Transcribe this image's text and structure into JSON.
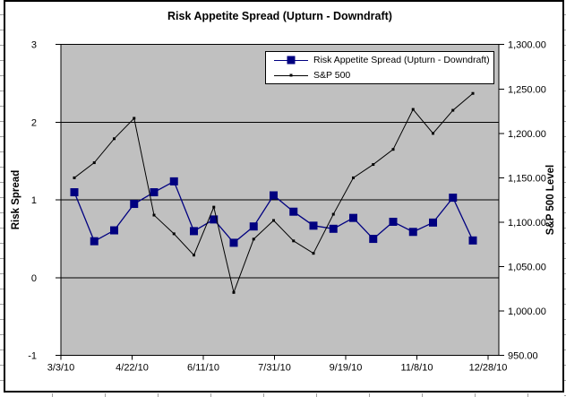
{
  "colors": {
    "plot_background": "#c0c0c0",
    "series1": "#000080",
    "series2": "#000000",
    "chart_border": "#000000",
    "gridline": "#000000"
  },
  "chart": {
    "title": "Risk Appetite Spread (Upturn - Downdraft)"
  },
  "legend": {
    "items": [
      {
        "label": "Risk Appetite Spread (Upturn - Downdraft)",
        "marker": "square",
        "color": "#000080"
      },
      {
        "label": "S&P 500",
        "marker": "dot",
        "color": "#000000"
      }
    ]
  },
  "chart_data": {
    "type": "line",
    "title": "Risk Appetite Spread (Upturn - Downdraft)",
    "x_tick_labels": [
      "3/3/10",
      "4/22/10",
      "6/11/10",
      "7/31/10",
      "9/19/10",
      "11/8/10",
      "12/28/10"
    ],
    "left_axis": {
      "label": "Risk Spread",
      "range": [
        -1,
        3
      ],
      "tick_values": [
        3,
        2,
        1,
        0,
        -1
      ],
      "tick_labels": [
        "3",
        "2",
        "1",
        "0",
        "-1"
      ]
    },
    "right_axis": {
      "label": "S&P 500 Level",
      "range": [
        950,
        1300
      ],
      "tick_values": [
        1300,
        1250,
        1200,
        1150,
        1100,
        1050,
        1000,
        950
      ],
      "tick_labels": [
        "1,300.00",
        "1,250.00",
        "1,200.00",
        "1,150.00",
        "1,100.00",
        "1,050.00",
        "1,000.00",
        "950.00"
      ]
    },
    "gridline_values": [
      2,
      1,
      0
    ],
    "legend_position": "top-right-inside",
    "grid": true,
    "series": [
      {
        "name": "Risk Appetite Spread (Upturn - Downdraft)",
        "axis": "left",
        "marker": "square",
        "color": "#000080",
        "values": [
          1.1,
          0.47,
          0.61,
          0.95,
          1.1,
          1.24,
          0.6,
          0.75,
          0.45,
          0.66,
          1.06,
          0.85,
          0.67,
          0.63,
          0.77,
          0.5,
          0.72,
          0.59,
          0.71,
          1.03,
          0.48
        ]
      },
      {
        "name": "S&P 500",
        "axis": "right",
        "marker": "dot",
        "color": "#000000",
        "values": [
          1150,
          1167,
          1194,
          1217,
          1108,
          1087,
          1063,
          1117,
          1021,
          1081,
          1102,
          1079,
          1065,
          1109,
          1150,
          1165,
          1182,
          1227,
          1200,
          1226,
          1245
        ]
      }
    ]
  }
}
